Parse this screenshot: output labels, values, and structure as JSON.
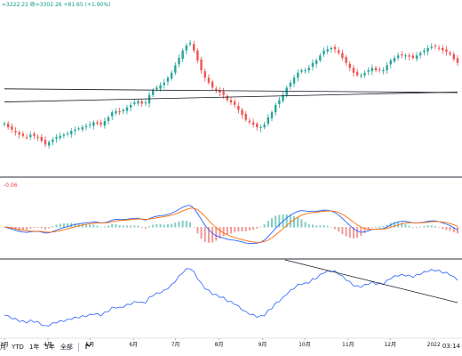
{
  "header": {
    "ohlc_text": "=3222.22 收=3302.26 +61.65 (+1.90%)"
  },
  "macd": {
    "value_text": "-0.06"
  },
  "toolbar": {
    "btn_1m": "月",
    "btn_ytd": "YTD",
    "btn_1y": "1年",
    "btn_5y": "5年",
    "btn_all": "全部",
    "compare_icon": "compare-icon"
  },
  "clock": "03:14",
  "colors": {
    "up": "#26a69a",
    "down": "#ef5350",
    "macd_line": "#2962ff",
    "signal_line": "#ff6d00",
    "indicator_line": "#2962ff",
    "trendline": "#131722"
  },
  "chart_data": {
    "type": "candlestick",
    "x_ticks": [
      "3月",
      "4月",
      "5月",
      "6月",
      "7月",
      "8月",
      "9月",
      "10月",
      "11月",
      "12月",
      "2022"
    ],
    "x_tick_days": [
      0,
      31,
      61,
      92,
      122,
      153,
      184,
      214,
      245,
      275,
      306
    ],
    "days": 323,
    "close": [
      2.05,
      1.9,
      1.8,
      1.7,
      1.6,
      1.55,
      1.5,
      1.6,
      1.55,
      1.5,
      1.35,
      1.2,
      1.3,
      1.4,
      1.5,
      1.55,
      1.6,
      1.65,
      1.75,
      1.8,
      1.85,
      1.9,
      1.95,
      2.0,
      2.1,
      2.05,
      2.0,
      2.15,
      2.3,
      2.5,
      2.55,
      2.5,
      2.6,
      2.7,
      2.8,
      2.9,
      2.95,
      2.85,
      2.9,
      3.2,
      3.4,
      3.5,
      3.6,
      3.7,
      3.9,
      4.1,
      4.4,
      4.7,
      5.0,
      5.2,
      5.3,
      5.0,
      4.6,
      4.2,
      3.9,
      3.7,
      3.5,
      3.4,
      3.3,
      3.2,
      3.0,
      2.9,
      2.8,
      2.6,
      2.4,
      2.2,
      2.1,
      2.0,
      1.9,
      1.9,
      2.0,
      2.3,
      2.5,
      2.8,
      3.0,
      3.2,
      3.5,
      3.7,
      3.9,
      4.1,
      4.2,
      4.2,
      4.3,
      4.5,
      4.6,
      4.8,
      5.0,
      5.05,
      5.1,
      5.05,
      4.9,
      4.7,
      4.5,
      4.3,
      4.1,
      4.0,
      4.0,
      4.1,
      4.2,
      4.3,
      4.2,
      4.2,
      4.2,
      4.4,
      4.6,
      4.7,
      4.8,
      4.8,
      4.8,
      4.75,
      4.7,
      4.8,
      4.9,
      5.0,
      5.1,
      5.15,
      5.15,
      5.1,
      5.0,
      4.95,
      4.85,
      4.65,
      4.5
    ],
    "close_unit": "indicator panel series (monthly-step interpolation)",
    "trendlines": [
      {
        "from": [
          0,
          3.45
        ],
        "to": [
          323,
          3.3
        ]
      },
      {
        "from": [
          0,
          2.92
        ],
        "to": [
          323,
          3.32
        ]
      }
    ],
    "panels": [
      "price",
      "macd",
      "indicator"
    ]
  }
}
